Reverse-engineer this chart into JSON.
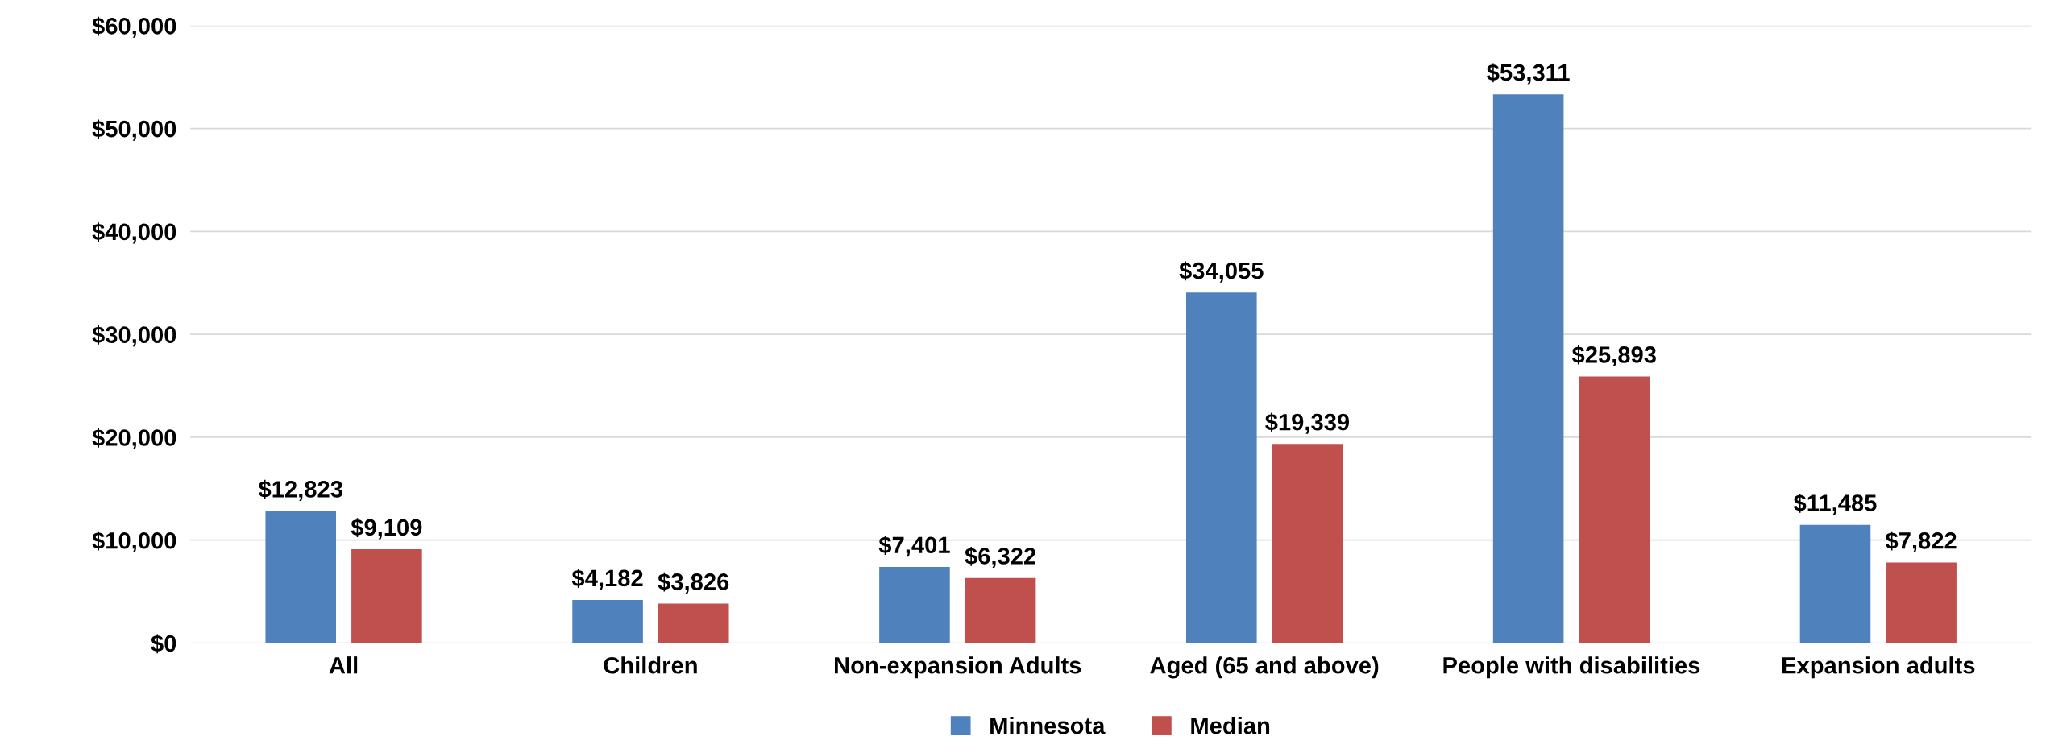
{
  "chart_data": {
    "type": "bar",
    "categories": [
      "All",
      "Children",
      "Non-expansion Adults",
      "Aged (65 and above)",
      "People with disabilities",
      "Expansion adults"
    ],
    "series": [
      {
        "name": "Minnesota",
        "color": "#4f81bd",
        "values": [
          12823,
          4182,
          7401,
          34055,
          53311,
          11485
        ],
        "value_labels": [
          "$12,823",
          "$4,182",
          "$7,401",
          "$34,055",
          "$53,311",
          "$11,485"
        ]
      },
      {
        "name": "Median",
        "color": "#c0504d",
        "values": [
          9109,
          3826,
          6322,
          19339,
          25893,
          7822
        ],
        "value_labels": [
          "$9,109",
          "$3,826",
          "$6,322",
          "$19,339",
          "$25,893",
          "$7,822"
        ]
      }
    ],
    "ylim": [
      0,
      60000
    ],
    "yticks": [
      {
        "value": 0,
        "label": "$0"
      },
      {
        "value": 10000,
        "label": "$10,000"
      },
      {
        "value": 20000,
        "label": "$20,000"
      },
      {
        "value": 30000,
        "label": "$30,000"
      },
      {
        "value": 40000,
        "label": "$40,000"
      },
      {
        "value": 50000,
        "label": "$50,000"
      },
      {
        "value": 60000,
        "label": "$60,000"
      }
    ],
    "grid": "y",
    "legend": "bottom"
  }
}
